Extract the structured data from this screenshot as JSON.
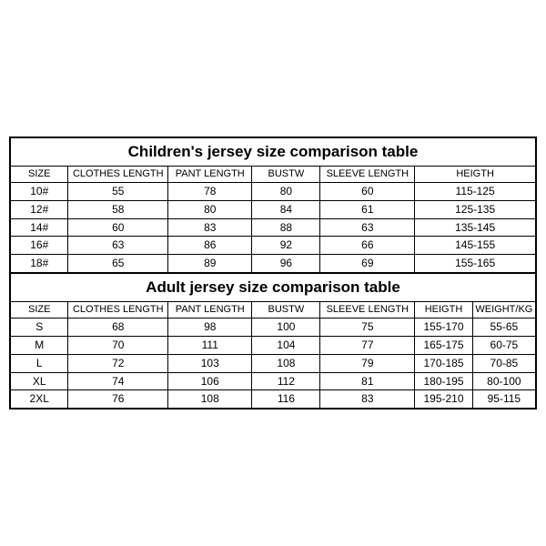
{
  "children": {
    "title": "Children's jersey size comparison table",
    "columns": [
      "SIZE",
      "CLOTHES LENGTH",
      "PANT LENGTH",
      "BUSTW",
      "SLEEVE LENGTH",
      "HEIGTH"
    ],
    "colwidths": [
      "11%",
      "19%",
      "16%",
      "13%",
      "18%",
      "23%"
    ],
    "rows": [
      [
        "10#",
        "55",
        "78",
        "80",
        "60",
        "115-125"
      ],
      [
        "12#",
        "58",
        "80",
        "84",
        "61",
        "125-135"
      ],
      [
        "14#",
        "60",
        "83",
        "88",
        "63",
        "135-145"
      ],
      [
        "16#",
        "63",
        "86",
        "92",
        "66",
        "145-155"
      ],
      [
        "18#",
        "65",
        "89",
        "96",
        "69",
        "155-165"
      ]
    ]
  },
  "adult": {
    "title": "Adult jersey size comparison table",
    "columns": [
      "SIZE",
      "CLOTHES LENGTH",
      "PANT LENGTH",
      "BUSTW",
      "SLEEVE LENGTH",
      "HEIGTH",
      "WEIGHT/KG"
    ],
    "colwidths": [
      "11%",
      "19%",
      "16%",
      "13%",
      "18%",
      "11%",
      "12%"
    ],
    "rows": [
      [
        "S",
        "68",
        "98",
        "100",
        "75",
        "155-170",
        "55-65"
      ],
      [
        "M",
        "70",
        "111",
        "104",
        "77",
        "165-175",
        "60-75"
      ],
      [
        "L",
        "72",
        "103",
        "108",
        "79",
        "170-185",
        "70-85"
      ],
      [
        "XL",
        "74",
        "106",
        "112",
        "81",
        "180-195",
        "80-100"
      ],
      [
        "2XL",
        "76",
        "108",
        "116",
        "83",
        "195-210",
        "95-115"
      ]
    ]
  },
  "style": {
    "border_color": "#000000",
    "bg": "#ffffff",
    "fontsize_title": 17,
    "fontsize_cell": 12
  }
}
